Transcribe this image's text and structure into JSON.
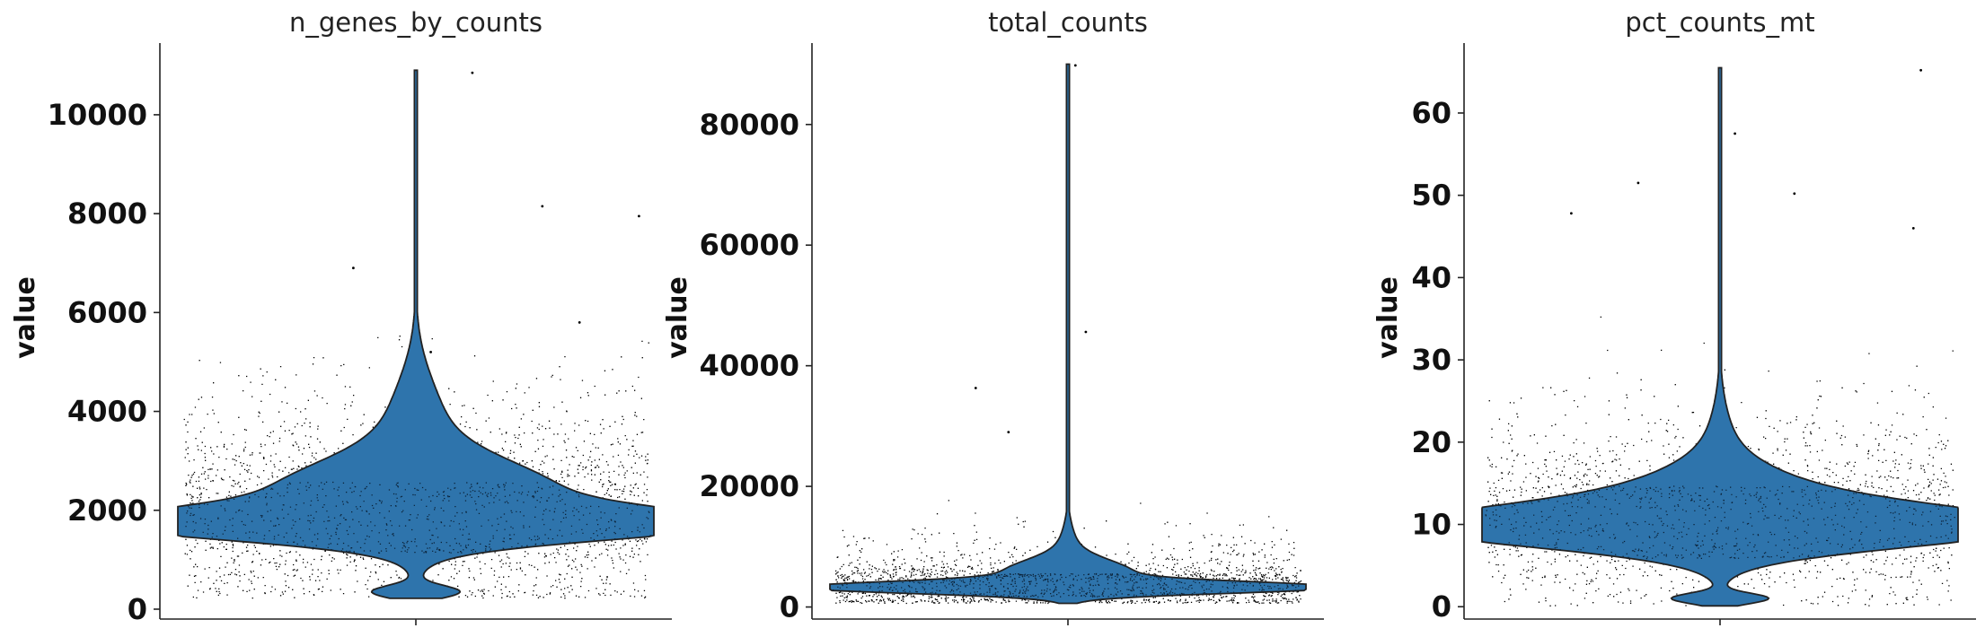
{
  "colors": {
    "violin": "#2E74AC",
    "violin_edge": "#222222",
    "points": "#000000",
    "axis": "#222222"
  },
  "chart_data": [
    {
      "type": "violin",
      "title": "n_genes_by_counts",
      "ylabel": "value",
      "ylim": [
        -200,
        11450
      ],
      "yticks": [
        0,
        2000,
        4000,
        6000,
        8000,
        10000
      ],
      "ytick_labels": [
        "0",
        "2000",
        "4000",
        "6000",
        "8000",
        "10000"
      ],
      "grid": false,
      "distribution": {
        "min": 220,
        "q1": 1400,
        "median": 1750,
        "q3": 2300,
        "max": 10900,
        "mode": 1700
      },
      "outliers": [
        [
          0.38,
          10850
        ],
        [
          0.85,
          8150
        ],
        [
          1.5,
          7950
        ],
        [
          -0.42,
          6900
        ],
        [
          0.1,
          5200
        ],
        [
          1.1,
          5800
        ]
      ]
    },
    {
      "type": "violin",
      "title": "total_counts",
      "ylabel": "value",
      "ylim": [
        -2000,
        93500
      ],
      "yticks": [
        0,
        20000,
        40000,
        60000,
        80000
      ],
      "ytick_labels": [
        "0",
        "20000",
        "40000",
        "60000",
        "80000"
      ],
      "grid": false,
      "distribution": {
        "min": 600,
        "q1": 2400,
        "median": 3300,
        "q3": 4800,
        "max": 90000,
        "mode": 3200
      },
      "outliers": [
        [
          0.05,
          89800
        ],
        [
          0.12,
          45600
        ],
        [
          -0.62,
          36300
        ],
        [
          -0.4,
          29000
        ]
      ]
    },
    {
      "type": "violin",
      "title": "pct_counts_mt",
      "ylabel": "value",
      "ylim": [
        -1.5,
        68.5
      ],
      "yticks": [
        0,
        10,
        20,
        30,
        40,
        50,
        60
      ],
      "ytick_labels": [
        "0",
        "10",
        "20",
        "30",
        "40",
        "50",
        "60"
      ],
      "grid": false,
      "distribution": {
        "min": 0.1,
        "q1": 7.5,
        "median": 10,
        "q3": 13,
        "max": 65.5,
        "mode": 9.5
      },
      "outliers": [
        [
          1.35,
          65.2
        ],
        [
          0.1,
          57.5
        ],
        [
          -0.55,
          51.5
        ],
        [
          0.5,
          50.2
        ],
        [
          -1.0,
          47.8
        ],
        [
          1.3,
          46.0
        ]
      ]
    }
  ]
}
